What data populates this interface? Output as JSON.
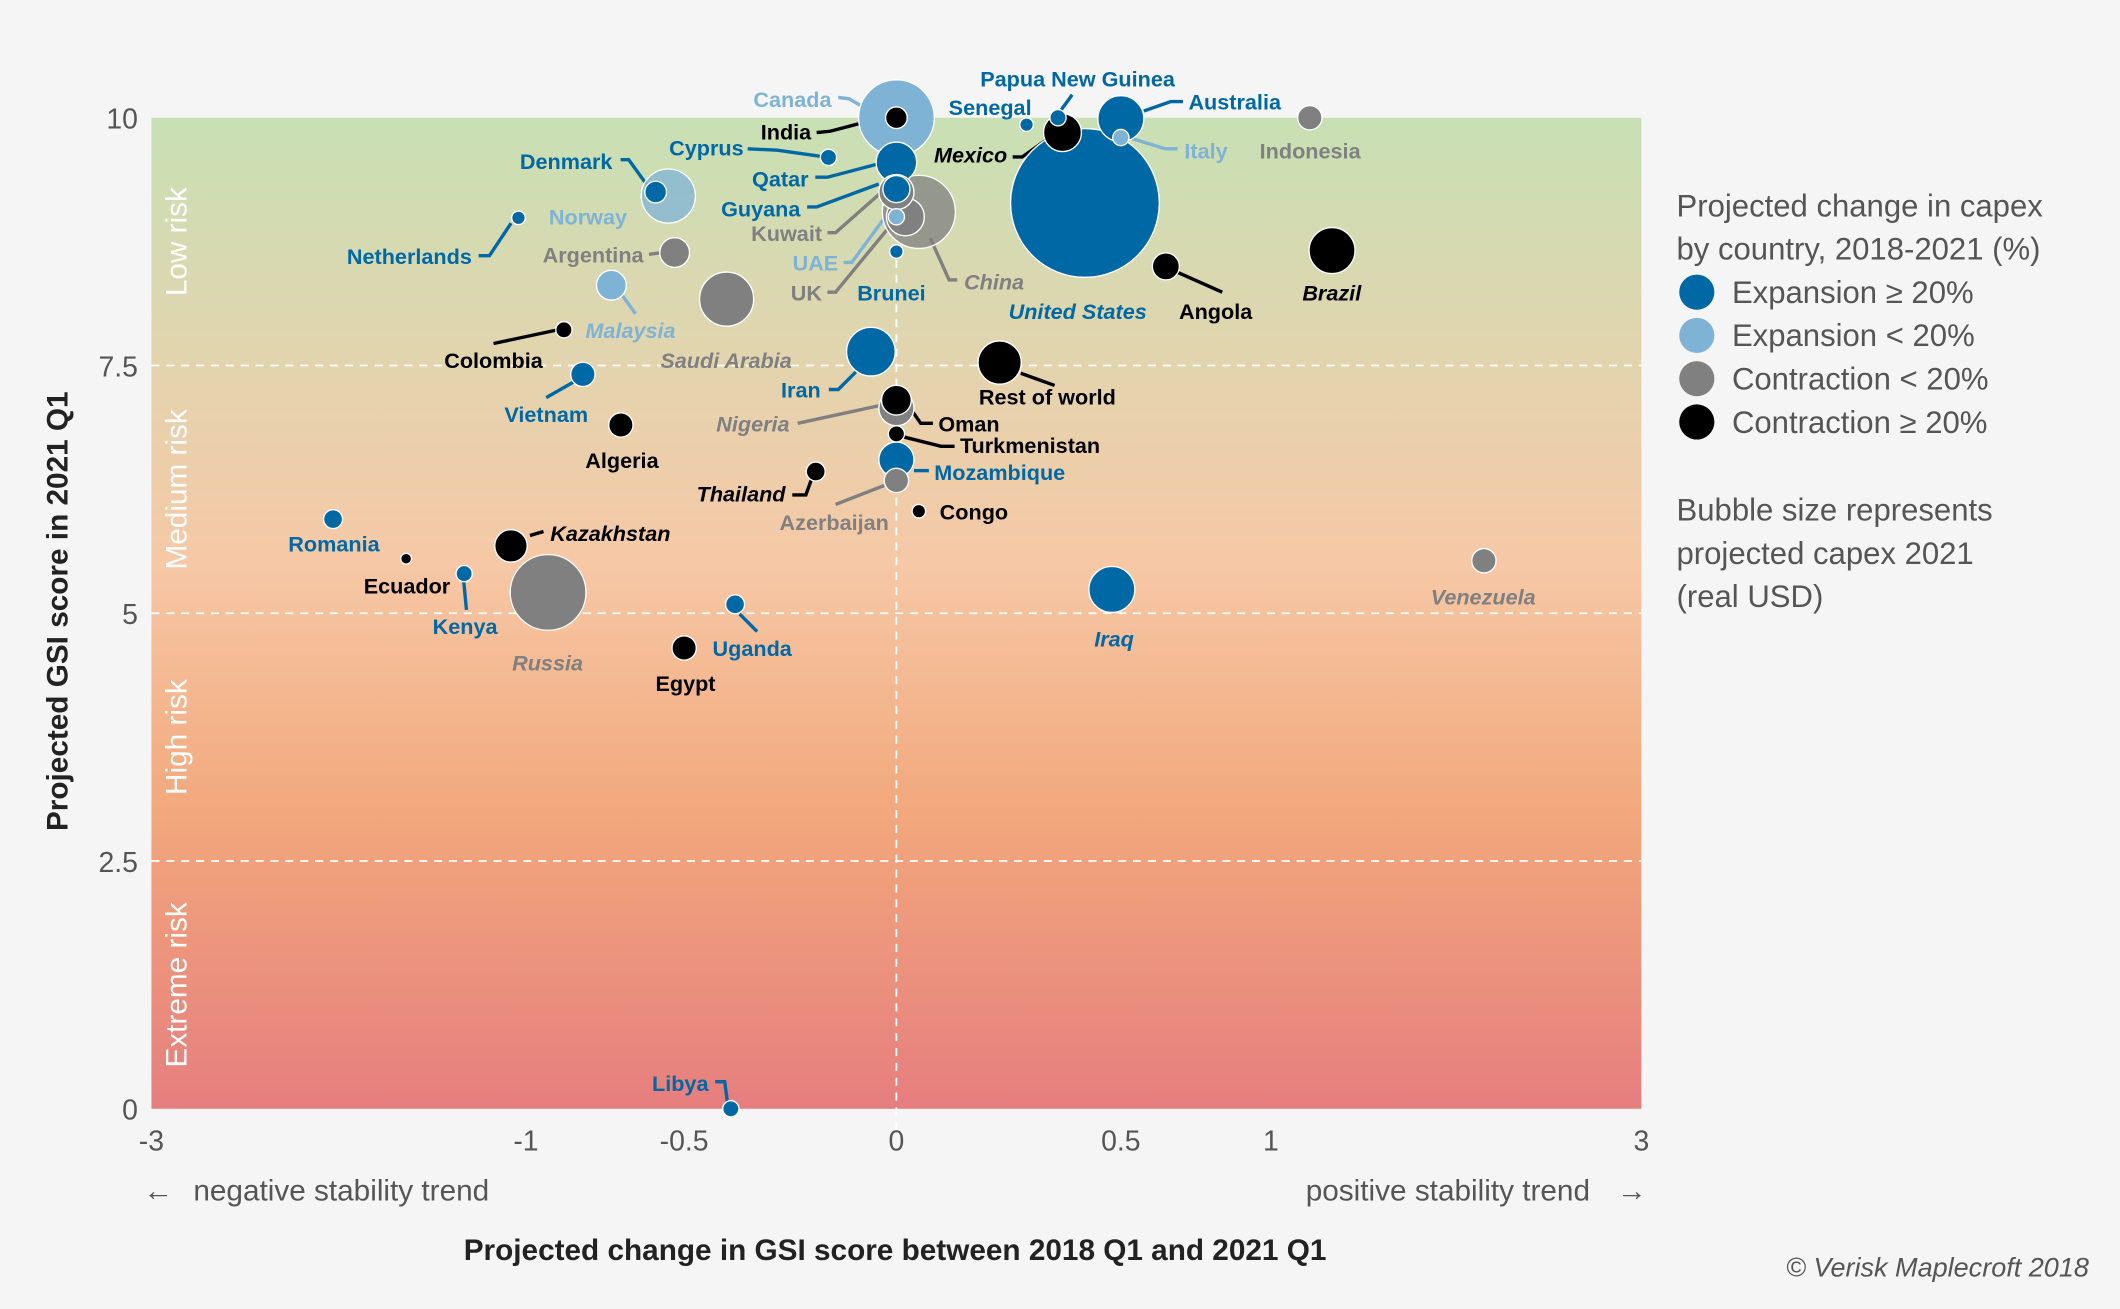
{
  "colors": {
    "expansion_large": "#0068a5",
    "expansion_small": "#7fb3d6",
    "contraction_small": "#808080",
    "contraction_large": "#000000"
  },
  "chart_data": {
    "type": "scatter",
    "xlabel": "Projected change in GSI score between 2018 Q1 and 2021 Q1",
    "ylabel": "Projected GSI score in 2021 Q1",
    "x_ticks": [
      "-3",
      "-1",
      "-0.5",
      "0",
      "0.5",
      "1",
      "3"
    ],
    "y_ticks": [
      "0",
      "2.5",
      "5",
      "7.5",
      "10"
    ],
    "xlim": [
      -3,
      3
    ],
    "ylim": [
      0,
      10
    ],
    "x_scale": "nonlinear (compressed at extremes)",
    "trend_labels": {
      "negative": "negative stability trend",
      "positive": "positive stability trend",
      "left_arrow": "←",
      "right_arrow": "→"
    },
    "risk_bands": [
      {
        "label": "Low risk",
        "from": 7.5,
        "to": 10
      },
      {
        "label": "Medium risk",
        "from": 5,
        "to": 7.5
      },
      {
        "label": "High risk",
        "from": 2.5,
        "to": 5
      },
      {
        "label": "Extreme risk",
        "from": 0,
        "to": 2.5
      }
    ],
    "legend": {
      "title_line1": "Projected change in capex",
      "title_line2": "by country, 2018-2021 (%)",
      "entries": [
        {
          "key": "expansion_large",
          "label": "Expansion ≥ 20%"
        },
        {
          "key": "expansion_small",
          "label": "Expansion < 20%"
        },
        {
          "key": "contraction_small",
          "label": "Contraction < 20%"
        },
        {
          "key": "contraction_large",
          "label": "Contraction ≥ 20%"
        }
      ],
      "note_line1": "Bubble size represents",
      "note_line2": "projected capex 2021",
      "note_line3": "(real USD)",
      "position": "right"
    },
    "grid": "dashed at 2.5, 5, 7.5 and x=0",
    "points": [
      {
        "name": "United States",
        "x": 0.42,
        "y": 9.14,
        "size": 55,
        "cat": "expansion_large",
        "italic": true
      },
      {
        "name": "Canada",
        "x": 0.0,
        "y": 10.0,
        "size": 28,
        "cat": "expansion_small",
        "italic": false
      },
      {
        "name": "Russia",
        "x": -0.93,
        "y": 5.21,
        "size": 28,
        "cat": "contraction_small",
        "italic": true
      },
      {
        "name": "China",
        "x": 0.05,
        "y": 9.05,
        "size": 27,
        "cat": "contraction_small",
        "italic": true
      },
      {
        "name": "Saudi Arabia",
        "x": -0.4,
        "y": 8.17,
        "size": 20,
        "cat": "contraction_small",
        "italic": true
      },
      {
        "name": "Norway",
        "x": -0.55,
        "y": 9.21,
        "size": 20,
        "cat": "expansion_small",
        "italic": false
      },
      {
        "name": "Iran",
        "x": -0.06,
        "y": 7.64,
        "size": 18,
        "cat": "expansion_large",
        "italic": false
      },
      {
        "name": "Iraq",
        "x": 0.48,
        "y": 5.24,
        "size": 17,
        "cat": "expansion_large",
        "italic": true
      },
      {
        "name": "Australia",
        "x": 0.5,
        "y": 9.99,
        "size": 17,
        "cat": "expansion_large",
        "italic": false
      },
      {
        "name": "Brazil",
        "x": 1.33,
        "y": 8.66,
        "size": 17,
        "cat": "contraction_large",
        "italic": true
      },
      {
        "name": "Rest of world",
        "x": 0.23,
        "y": 7.53,
        "size": 16,
        "cat": "contraction_large",
        "italic": false
      },
      {
        "name": "Qatar",
        "x": 0.0,
        "y": 9.55,
        "size": 15,
        "cat": "expansion_large",
        "italic": false
      },
      {
        "name": "Mexico",
        "x": 0.37,
        "y": 9.85,
        "size": 14,
        "cat": "contraction_large",
        "italic": true
      },
      {
        "name": "UK",
        "x": 0.02,
        "y": 9.0,
        "size": 14,
        "cat": "contraction_small",
        "italic": false
      },
      {
        "name": "Kuwait",
        "x": 0.0,
        "y": 9.25,
        "size": 13,
        "cat": "contraction_small",
        "italic": false
      },
      {
        "name": "Nigeria",
        "x": 0.0,
        "y": 7.07,
        "size": 13,
        "cat": "contraction_small",
        "italic": true
      },
      {
        "name": "Mozambique",
        "x": 0.0,
        "y": 6.55,
        "size": 13,
        "cat": "expansion_large",
        "italic": false
      },
      {
        "name": "Kazakhstan",
        "x": -1.08,
        "y": 5.68,
        "size": 12,
        "cat": "contraction_large",
        "italic": true
      },
      {
        "name": "Oman",
        "x": 0.0,
        "y": 7.15,
        "size": 11,
        "cat": "contraction_large",
        "italic": false
      },
      {
        "name": "Argentina",
        "x": -0.53,
        "y": 8.64,
        "size": 11,
        "cat": "contraction_small",
        "italic": false
      },
      {
        "name": "Malaysia",
        "x": -0.73,
        "y": 8.31,
        "size": 11,
        "cat": "expansion_small",
        "italic": true
      },
      {
        "name": "Guyana",
        "x": 0.0,
        "y": 9.28,
        "size": 10,
        "cat": "expansion_large",
        "italic": false
      },
      {
        "name": "Angola",
        "x": 0.65,
        "y": 8.5,
        "size": 10,
        "cat": "contraction_large",
        "italic": false
      },
      {
        "name": "Vietnam",
        "x": -0.82,
        "y": 7.41,
        "size": 9,
        "cat": "expansion_large",
        "italic": false
      },
      {
        "name": "Algeria",
        "x": -0.7,
        "y": 6.9,
        "size": 9,
        "cat": "contraction_large",
        "italic": false
      },
      {
        "name": "Egypt",
        "x": -0.5,
        "y": 4.65,
        "size": 9,
        "cat": "contraction_large",
        "italic": false
      },
      {
        "name": "Azerbaijan",
        "x": 0.0,
        "y": 6.34,
        "size": 9,
        "cat": "contraction_small",
        "italic": false
      },
      {
        "name": "Venezuela",
        "x": 2.15,
        "y": 5.53,
        "size": 9,
        "cat": "contraction_small",
        "italic": true
      },
      {
        "name": "Indonesia",
        "x": 1.21,
        "y": 10.0,
        "size": 9,
        "cat": "contraction_small",
        "italic": false
      },
      {
        "name": "Denmark",
        "x": -0.59,
        "y": 9.25,
        "size": 8,
        "cat": "expansion_large",
        "italic": false
      },
      {
        "name": "India",
        "x": 0.0,
        "y": 10.0,
        "size": 8,
        "cat": "contraction_large",
        "italic": false
      },
      {
        "name": "Romania",
        "x": -2.03,
        "y": 5.95,
        "size": 7,
        "cat": "expansion_large",
        "italic": false
      },
      {
        "name": "Uganda",
        "x": -0.38,
        "y": 5.09,
        "size": 7,
        "cat": "expansion_large",
        "italic": false
      },
      {
        "name": "Thailand",
        "x": -0.19,
        "y": 6.43,
        "size": 7,
        "cat": "contraction_large",
        "italic": true
      },
      {
        "name": "UAE",
        "x": 0.0,
        "y": 9.0,
        "size": 6,
        "cat": "expansion_small",
        "italic": false
      },
      {
        "name": "Cyprus",
        "x": -0.16,
        "y": 9.6,
        "size": 6,
        "cat": "expansion_large",
        "italic": false
      },
      {
        "name": "Colombia",
        "x": -0.88,
        "y": 7.86,
        "size": 6,
        "cat": "contraction_large",
        "italic": false
      },
      {
        "name": "Turkmenistan",
        "x": 0.0,
        "y": 6.81,
        "size": 6,
        "cat": "contraction_large",
        "italic": false
      },
      {
        "name": "Kenya",
        "x": -1.33,
        "y": 5.4,
        "size": 6,
        "cat": "expansion_large",
        "italic": false
      },
      {
        "name": "Libya",
        "x": -0.39,
        "y": 0.0,
        "size": 6,
        "cat": "expansion_large",
        "italic": false
      },
      {
        "name": "Papua New Guinea",
        "x": 0.36,
        "y": 10.0,
        "size": 6,
        "cat": "expansion_large",
        "italic": false
      },
      {
        "name": "Italy",
        "x": 0.5,
        "y": 9.8,
        "size": 6,
        "cat": "expansion_small",
        "italic": false
      },
      {
        "name": "Netherlands",
        "x": -1.04,
        "y": 8.99,
        "size": 5,
        "cat": "expansion_large",
        "italic": false
      },
      {
        "name": "Brunei",
        "x": 0.0,
        "y": 8.65,
        "size": 5,
        "cat": "expansion_large",
        "italic": false
      },
      {
        "name": "Senegal",
        "x": 0.29,
        "y": 9.93,
        "size": 5,
        "cat": "expansion_large",
        "italic": false
      },
      {
        "name": "Congo",
        "x": 0.05,
        "y": 6.03,
        "size": 5,
        "cat": "contraction_large",
        "italic": false
      },
      {
        "name": "Ecuador",
        "x": -1.64,
        "y": 5.55,
        "size": 4,
        "cat": "contraction_large",
        "italic": false
      }
    ]
  },
  "copyright": "© Verisk Maplecroft 2018"
}
